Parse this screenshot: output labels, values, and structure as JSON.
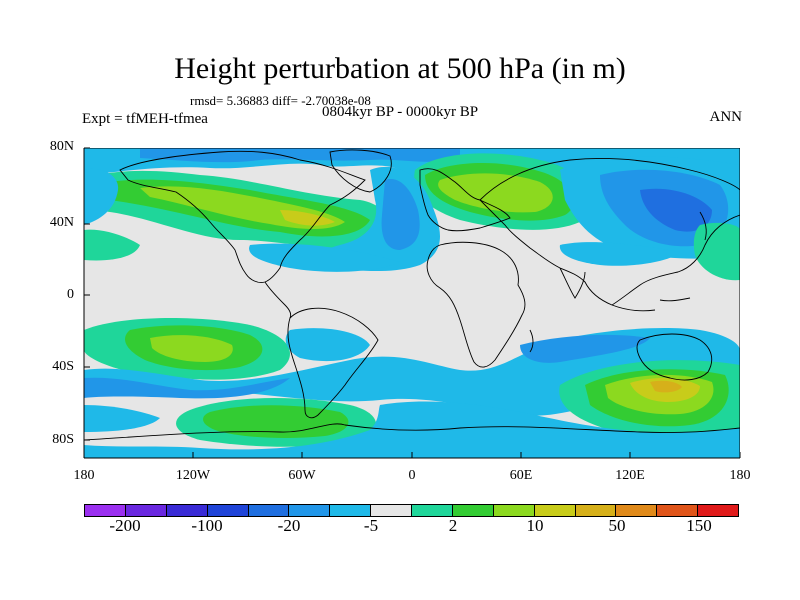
{
  "title": "Height perturbation at 500 hPa (in m)",
  "stats": "rmsd= 5.36883 diff= -2.70038e-08",
  "experiment": "Expt = tfMEH-tfmea",
  "period": "0804kyr BP - 0000kyr BP",
  "season": "ANN",
  "lat_labels": [
    "80N",
    "40N",
    "0",
    "40S",
    "80S"
  ],
  "lon_labels": [
    "180",
    "120W",
    "60W",
    "0",
    "60E",
    "120E",
    "180"
  ],
  "colorbar": {
    "colors": [
      "#9b30f0",
      "#6a28e0",
      "#3a2bd6",
      "#1f44d8",
      "#1f6fe0",
      "#2196e8",
      "#1fb9e8",
      "#e6e6e6",
      "#1fd69a",
      "#33cc33",
      "#8cd91f",
      "#c8cc1a",
      "#d6b01a",
      "#e08a1a",
      "#e0551a",
      "#e01a1a"
    ],
    "labels": [
      "-200",
      "-100",
      "-20",
      "-5",
      "2",
      "10",
      "50",
      "150"
    ]
  },
  "palette": {
    "land_outline": "#000000",
    "neutral": "#e6e6e6"
  }
}
